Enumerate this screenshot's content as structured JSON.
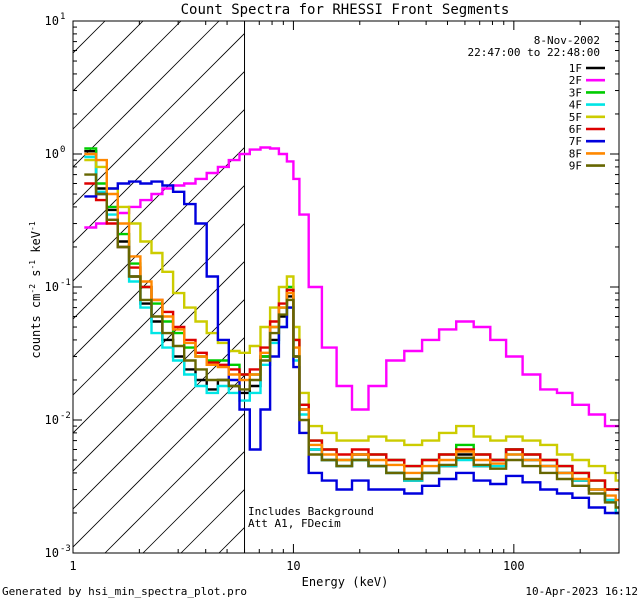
{
  "chart_data": {
    "type": "line",
    "title": "Count Spectra for RHESSI Front Segments",
    "xlabel": "Energy (keV)",
    "ylabel_main": "counts cm",
    "ylabel_exp1": "-2",
    "ylabel_s": " s",
    "ylabel_exp2": "-1",
    "ylabel_kev": " keV",
    "ylabel_exp3": "-1",
    "x_scale": "log",
    "y_scale": "log",
    "xlim": [
      1,
      300
    ],
    "ylim": [
      0.001,
      10
    ],
    "x_ticks": [
      {
        "value": 10,
        "label": "10"
      },
      {
        "value": 100,
        "label": "100"
      }
    ],
    "x_tick_one": "1",
    "y_ticks": [
      {
        "value": 0.001,
        "base": "10",
        "exp": "-3"
      },
      {
        "value": 0.01,
        "base": "10",
        "exp": "-2"
      },
      {
        "value": 0.1,
        "base": "10",
        "exp": "-1"
      },
      {
        "value": 1,
        "base": "10",
        "exp": "0"
      },
      {
        "value": 10,
        "base": "10",
        "exp": "1"
      }
    ],
    "hatch_region_max_keV": 6,
    "date": "8-Nov-2002",
    "time_range": "22:47:00 to 22:48:00",
    "annotations": [
      "Includes Background",
      "Att A1, FDecim"
    ],
    "legend_position": "top-right",
    "energies": [
      1.2,
      1.35,
      1.5,
      1.7,
      1.9,
      2.15,
      2.4,
      2.7,
      3.0,
      3.4,
      3.8,
      4.3,
      4.8,
      5.4,
      6.0,
      6.7,
      7.5,
      8.2,
      9.0,
      9.7,
      10.3,
      11.0,
      12.5,
      14.5,
      17.0,
      20.0,
      24.0,
      29.0,
      35.0,
      42.0,
      50.0,
      60.0,
      72.0,
      85.0,
      100.0,
      120.0,
      145.0,
      170.0,
      200.0,
      240.0,
      280.0,
      300.0
    ],
    "series": [
      {
        "name": "1F",
        "color": "#000000",
        "values": [
          1.05,
          0.55,
          0.38,
          0.22,
          0.12,
          0.075,
          0.055,
          0.04,
          0.03,
          0.024,
          0.02,
          0.017,
          0.02,
          0.018,
          0.016,
          0.018,
          0.03,
          0.04,
          0.06,
          0.085,
          0.03,
          0.012,
          0.006,
          0.005,
          0.0045,
          0.0055,
          0.0045,
          0.004,
          0.0035,
          0.004,
          0.0045,
          0.0055,
          0.0045,
          0.005,
          0.006,
          0.005,
          0.0045,
          0.004,
          0.0035,
          0.003,
          0.0025,
          0.002
        ]
      },
      {
        "name": "2F",
        "color": "#ff00ff",
        "values": [
          0.28,
          0.3,
          0.32,
          0.36,
          0.4,
          0.45,
          0.5,
          0.55,
          0.58,
          0.6,
          0.65,
          0.72,
          0.8,
          0.9,
          1.0,
          1.08,
          1.12,
          1.1,
          1.0,
          0.88,
          0.65,
          0.35,
          0.1,
          0.035,
          0.018,
          0.012,
          0.018,
          0.028,
          0.033,
          0.04,
          0.048,
          0.055,
          0.05,
          0.04,
          0.03,
          0.022,
          0.017,
          0.016,
          0.013,
          0.011,
          0.009,
          0.009
        ]
      },
      {
        "name": "3F",
        "color": "#00cc00",
        "values": [
          1.1,
          0.6,
          0.4,
          0.25,
          0.15,
          0.1,
          0.075,
          0.055,
          0.045,
          0.035,
          0.03,
          0.028,
          0.028,
          0.026,
          0.022,
          0.022,
          0.03,
          0.05,
          0.07,
          0.1,
          0.04,
          0.013,
          0.007,
          0.006,
          0.005,
          0.005,
          0.0055,
          0.005,
          0.0045,
          0.005,
          0.0055,
          0.0065,
          0.0055,
          0.005,
          0.006,
          0.0055,
          0.005,
          0.0045,
          0.004,
          0.0035,
          0.003,
          0.003
        ]
      },
      {
        "name": "4F",
        "color": "#00e5e5",
        "values": [
          0.95,
          0.52,
          0.35,
          0.2,
          0.11,
          0.07,
          0.045,
          0.035,
          0.028,
          0.022,
          0.018,
          0.016,
          0.018,
          0.016,
          0.014,
          0.016,
          0.026,
          0.038,
          0.05,
          0.07,
          0.028,
          0.011,
          0.006,
          0.005,
          0.0045,
          0.005,
          0.0045,
          0.004,
          0.0035,
          0.004,
          0.0045,
          0.005,
          0.0045,
          0.0045,
          0.0055,
          0.005,
          0.0045,
          0.004,
          0.0035,
          0.003,
          0.0025,
          0.002
        ]
      },
      {
        "name": "5F",
        "color": "#cccc00",
        "values": [
          0.9,
          0.8,
          0.55,
          0.4,
          0.3,
          0.22,
          0.18,
          0.13,
          0.09,
          0.07,
          0.055,
          0.045,
          0.038,
          0.033,
          0.032,
          0.036,
          0.05,
          0.07,
          0.1,
          0.12,
          0.05,
          0.016,
          0.009,
          0.008,
          0.007,
          0.007,
          0.0075,
          0.007,
          0.0065,
          0.007,
          0.008,
          0.009,
          0.0075,
          0.007,
          0.0075,
          0.007,
          0.0065,
          0.0055,
          0.005,
          0.0045,
          0.004,
          0.0035
        ]
      },
      {
        "name": "6F",
        "color": "#dd0000",
        "values": [
          0.6,
          0.45,
          0.3,
          0.2,
          0.14,
          0.1,
          0.08,
          0.065,
          0.05,
          0.04,
          0.032,
          0.027,
          0.026,
          0.024,
          0.022,
          0.024,
          0.035,
          0.055,
          0.075,
          0.095,
          0.04,
          0.013,
          0.007,
          0.006,
          0.0055,
          0.006,
          0.0055,
          0.005,
          0.0045,
          0.005,
          0.0055,
          0.006,
          0.0055,
          0.005,
          0.006,
          0.0055,
          0.005,
          0.0045,
          0.004,
          0.0035,
          0.003,
          0.003
        ]
      },
      {
        "name": "7F",
        "color": "#0000dd",
        "values": [
          0.48,
          0.5,
          0.55,
          0.6,
          0.62,
          0.6,
          0.62,
          0.58,
          0.52,
          0.42,
          0.3,
          0.12,
          0.04,
          0.02,
          0.012,
          0.006,
          0.012,
          0.03,
          0.05,
          0.07,
          0.025,
          0.008,
          0.004,
          0.0035,
          0.003,
          0.0035,
          0.003,
          0.003,
          0.0028,
          0.0032,
          0.0036,
          0.004,
          0.0035,
          0.0033,
          0.0038,
          0.0034,
          0.003,
          0.0028,
          0.0026,
          0.0022,
          0.002,
          0.002
        ]
      },
      {
        "name": "8F",
        "color": "#ff8800",
        "values": [
          1.0,
          0.9,
          0.5,
          0.3,
          0.17,
          0.11,
          0.08,
          0.06,
          0.048,
          0.038,
          0.03,
          0.026,
          0.025,
          0.022,
          0.02,
          0.022,
          0.032,
          0.05,
          0.07,
          0.09,
          0.035,
          0.012,
          0.0065,
          0.0055,
          0.005,
          0.0055,
          0.005,
          0.0046,
          0.004,
          0.0045,
          0.005,
          0.0058,
          0.005,
          0.0047,
          0.0055,
          0.005,
          0.0045,
          0.004,
          0.0036,
          0.003,
          0.0027,
          0.0025
        ]
      },
      {
        "name": "9F",
        "color": "#666600",
        "values": [
          0.7,
          0.5,
          0.32,
          0.2,
          0.12,
          0.08,
          0.06,
          0.045,
          0.036,
          0.028,
          0.024,
          0.02,
          0.02,
          0.018,
          0.017,
          0.02,
          0.028,
          0.045,
          0.062,
          0.08,
          0.03,
          0.01,
          0.0055,
          0.005,
          0.0045,
          0.005,
          0.0045,
          0.004,
          0.0036,
          0.004,
          0.0046,
          0.0052,
          0.0046,
          0.0043,
          0.005,
          0.0045,
          0.004,
          0.0036,
          0.0032,
          0.0028,
          0.0024,
          0.0022
        ]
      }
    ]
  },
  "footer": {
    "generated_by": "Generated by hsi_min_spectra_plot.pro",
    "timestamp": "10-Apr-2023 16:12"
  }
}
